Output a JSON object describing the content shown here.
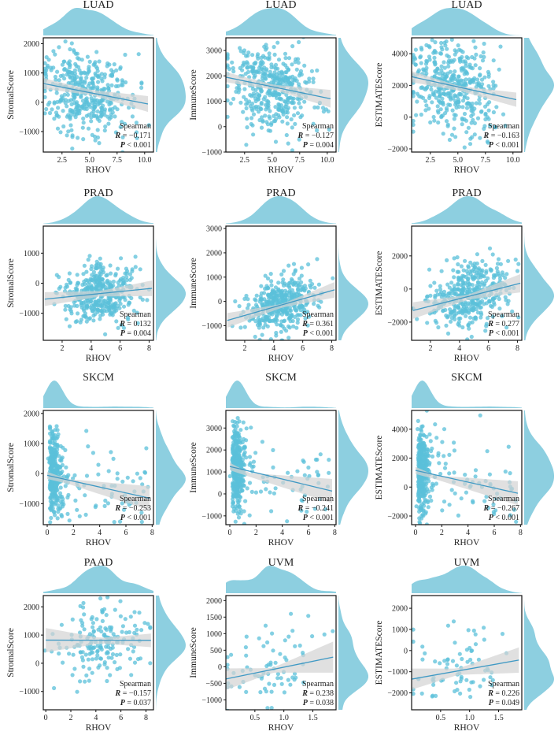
{
  "style": {
    "point_color": "#5bc0d9",
    "line_color": "#3f99c4",
    "band_color": "#d3d3d3",
    "density_color": "#8dcfe0"
  },
  "chart_data": [
    {
      "type": "scatter",
      "title": "LUAD",
      "xlabel": "RHOV",
      "ylabel": "StromalScore",
      "xlim": [
        0.8,
        10.8
      ],
      "ylim": [
        -1700,
        2200
      ],
      "xticks": [
        2.5,
        5.0,
        7.5,
        10.0
      ],
      "xtick_labels": [
        "2.5",
        "5.0",
        "7.5",
        "10.0"
      ],
      "yticks": [
        -1000,
        0,
        1000,
        2000
      ],
      "ytick_labels": [
        "−1000",
        "0",
        "1000",
        "2000"
      ],
      "stat_method": "Spearman",
      "stat_r": "= −0.171",
      "stat_p": "< 0.001",
      "fit": {
        "x": [
          0.8,
          10.3
        ],
        "y": [
          640,
          -60
        ],
        "band": [
          [
            0.8,
            820,
            460
          ],
          [
            5.2,
            420,
            240
          ],
          [
            10.3,
            210,
            -330
          ]
        ]
      },
      "n_points": 420,
      "x_center": 4.5,
      "x_spread": 2.0,
      "y_spread": 720,
      "x_skew": 0.3,
      "seed": 11
    },
    {
      "type": "scatter",
      "title": "LUAD",
      "xlabel": "RHOV",
      "ylabel": "ImmuneScore",
      "xlim": [
        0.8,
        10.8
      ],
      "ylim": [
        -1000,
        3500
      ],
      "xticks": [
        2.5,
        5.0,
        7.5,
        10.0
      ],
      "xtick_labels": [
        "2.5",
        "5.0",
        "7.5",
        "10.0"
      ],
      "yticks": [
        -1000,
        0,
        1000,
        2000,
        3000
      ],
      "ytick_labels": [
        "−1000",
        "0",
        "1000",
        "2000",
        "3000"
      ],
      "stat_method": "Spearman",
      "stat_r": "= −0.127",
      "stat_p": "= 0.004",
      "fit": {
        "x": [
          0.8,
          10.3
        ],
        "y": [
          1950,
          1100
        ],
        "band": [
          [
            0.8,
            2150,
            1750
          ],
          [
            5.2,
            1650,
            1450
          ],
          [
            10.3,
            1450,
            750
          ]
        ]
      },
      "n_points": 420,
      "x_center": 4.5,
      "x_spread": 2.0,
      "y_spread": 850,
      "x_skew": 0.3,
      "seed": 23
    },
    {
      "type": "scatter",
      "title": "LUAD",
      "xlabel": "RHOV",
      "ylabel": "ESTIMATEScore",
      "xlim": [
        0.8,
        10.8
      ],
      "ylim": [
        -2200,
        5000
      ],
      "xticks": [
        2.5,
        5.0,
        7.5,
        10.0
      ],
      "xtick_labels": [
        "2.5",
        "5.0",
        "7.5",
        "10.0"
      ],
      "yticks": [
        -2000,
        0,
        2000,
        4000
      ],
      "ytick_labels": [
        "−2000",
        "0",
        "2000",
        "4000"
      ],
      "stat_method": "Spearman",
      "stat_r": "= −0.163",
      "stat_p": "< 0.001",
      "fit": {
        "x": [
          0.8,
          10.3
        ],
        "y": [
          2550,
          1100
        ],
        "band": [
          [
            0.8,
            2900,
            2200
          ],
          [
            5.2,
            1950,
            1650
          ],
          [
            10.3,
            1550,
            650
          ]
        ]
      },
      "n_points": 420,
      "x_center": 4.5,
      "x_spread": 2.0,
      "y_spread": 1450,
      "x_skew": 0.3,
      "seed": 37
    },
    {
      "type": "scatter",
      "title": "PRAD",
      "xlabel": "RHOV",
      "ylabel": "StromalScore",
      "xlim": [
        0.7,
        8.3
      ],
      "ylim": [
        -1900,
        1900
      ],
      "xticks": [
        2,
        4,
        6,
        8
      ],
      "xtick_labels": [
        "2",
        "4",
        "6",
        "8"
      ],
      "yticks": [
        -1000,
        0,
        1000
      ],
      "ytick_labels": [
        "−1000",
        "0",
        "1000"
      ],
      "stat_method": "Spearman",
      "stat_r": "= 0.132",
      "stat_p": "= 0.004",
      "fit": {
        "x": [
          0.8,
          8.2
        ],
        "y": [
          -530,
          -170
        ],
        "band": [
          [
            0.8,
            -300,
            -760
          ],
          [
            4.6,
            -260,
            -440
          ],
          [
            8.2,
            90,
            -430
          ]
        ]
      },
      "n_points": 420,
      "x_center": 4.6,
      "x_spread": 1.3,
      "y_spread": 480,
      "x_skew": 0,
      "seed": 41
    },
    {
      "type": "scatter",
      "title": "PRAD",
      "xlabel": "RHOV",
      "ylabel": "ImmuneScore",
      "xlim": [
        0.7,
        8.3
      ],
      "ylim": [
        -1600,
        3100
      ],
      "xticks": [
        2,
        4,
        6,
        8
      ],
      "xtick_labels": [
        "2",
        "4",
        "6",
        "8"
      ],
      "yticks": [
        -1000,
        0,
        1000,
        2000,
        3000
      ],
      "ytick_labels": [
        "−1000",
        "0",
        "1000",
        "2000",
        "3000"
      ],
      "stat_method": "Spearman",
      "stat_r": "= 0.361",
      "stat_p": "< 0.001",
      "fit": {
        "x": [
          0.8,
          8.2
        ],
        "y": [
          -780,
          480
        ],
        "band": [
          [
            0.8,
            -480,
            -1080
          ],
          [
            4.6,
            -100,
            -250
          ],
          [
            8.2,
            800,
            160
          ]
        ]
      },
      "n_points": 420,
      "x_center": 4.6,
      "x_spread": 1.3,
      "y_spread": 560,
      "x_skew": 0,
      "seed": 53
    },
    {
      "type": "scatter",
      "title": "PRAD",
      "xlabel": "RHOV",
      "ylabel": "ESTIMATEScore",
      "xlim": [
        0.7,
        8.3
      ],
      "ylim": [
        -3100,
        3800
      ],
      "xticks": [
        2,
        4,
        6,
        8
      ],
      "xtick_labels": [
        "2",
        "4",
        "6",
        "8"
      ],
      "yticks": [
        -2000,
        0,
        2000
      ],
      "ytick_labels": [
        "−2000",
        "0",
        "2000"
      ],
      "stat_method": "Spearman",
      "stat_r": "= 0.277",
      "stat_p": "< 0.001",
      "fit": {
        "x": [
          0.8,
          8.2
        ],
        "y": [
          -1300,
          350
        ],
        "band": [
          [
            0.8,
            -800,
            -1800
          ],
          [
            4.6,
            -350,
            -650
          ],
          [
            8.2,
            900,
            -200
          ]
        ]
      },
      "n_points": 420,
      "x_center": 4.6,
      "x_spread": 1.3,
      "y_spread": 950,
      "x_skew": 0,
      "seed": 67
    },
    {
      "type": "scatter",
      "title": "SKCM",
      "xlabel": "RHOV",
      "ylabel": "StromalScore",
      "xlim": [
        -0.3,
        8.1
      ],
      "ylim": [
        -1700,
        2100
      ],
      "xticks": [
        0,
        2,
        4,
        6,
        8
      ],
      "xtick_labels": [
        "0",
        "2",
        "4",
        "6",
        "8"
      ],
      "yticks": [
        -1000,
        0,
        1000,
        2000
      ],
      "ytick_labels": [
        "−1000",
        "0",
        "1000",
        "2000"
      ],
      "stat_method": "Spearman",
      "stat_r": "= −0.253",
      "stat_p": "< 0.001",
      "fit": {
        "x": [
          0,
          7.8
        ],
        "y": [
          -60,
          -820
        ],
        "band": [
          [
            0,
            60,
            -180
          ],
          [
            1.5,
            -180,
            -330
          ],
          [
            7.8,
            -420,
            -1220
          ]
        ]
      },
      "n_points": 400,
      "x_center": 0.2,
      "x_spread": 0.45,
      "y_spread": 700,
      "x_skew": 1,
      "seed": 71
    },
    {
      "type": "scatter",
      "title": "SKCM",
      "xlabel": "RHOV",
      "ylabel": "ImmuneScore",
      "xlim": [
        -0.3,
        8.1
      ],
      "ylim": [
        -1400,
        3800
      ],
      "xticks": [
        0,
        2,
        4,
        6,
        8
      ],
      "xtick_labels": [
        "0",
        "2",
        "4",
        "6",
        "8"
      ],
      "yticks": [
        -1000,
        0,
        1000,
        2000,
        3000
      ],
      "ytick_labels": [
        "−1000",
        "0",
        "1000",
        "2000",
        "3000"
      ],
      "stat_method": "Spearman",
      "stat_r": "= −0.241",
      "stat_p": "< 0.001",
      "fit": {
        "x": [
          0,
          7.8
        ],
        "y": [
          1250,
          130
        ],
        "band": [
          [
            0,
            1420,
            1080
          ],
          [
            1.5,
            950,
            780
          ],
          [
            7.8,
            680,
            -420
          ]
        ]
      },
      "n_points": 400,
      "x_center": 0.2,
      "x_spread": 0.45,
      "y_spread": 950,
      "x_skew": 1,
      "seed": 83
    },
    {
      "type": "scatter",
      "title": "SKCM",
      "xlabel": "RHOV",
      "ylabel": "ESTIMATEScore",
      "xlim": [
        -0.3,
        8.1
      ],
      "ylim": [
        -2600,
        5300
      ],
      "xticks": [
        0,
        2,
        4,
        6,
        8
      ],
      "xtick_labels": [
        "0",
        "2",
        "4",
        "6",
        "8"
      ],
      "yticks": [
        -2000,
        0,
        2000,
        4000
      ],
      "ytick_labels": [
        "−2000",
        "0",
        "2000",
        "4000"
      ],
      "stat_method": "Spearman",
      "stat_r": "= −0.267",
      "stat_p": "< 0.001",
      "fit": {
        "x": [
          0,
          7.8
        ],
        "y": [
          1150,
          -430
        ],
        "band": [
          [
            0,
            1400,
            900
          ],
          [
            1.5,
            800,
            550
          ],
          [
            7.8,
            400,
            -1260
          ]
        ]
      },
      "n_points": 400,
      "x_center": 0.2,
      "x_spread": 0.45,
      "y_spread": 1550,
      "x_skew": 1,
      "seed": 97
    },
    {
      "type": "scatter",
      "title": "PAAD",
      "xlabel": "RHOV",
      "ylabel": "StromalScore",
      "xlim": [
        -0.2,
        8.6
      ],
      "ylim": [
        -1650,
        2400
      ],
      "xticks": [
        0,
        2,
        4,
        6,
        8
      ],
      "xtick_labels": [
        "0",
        "2",
        "4",
        "6",
        "8"
      ],
      "yticks": [
        -1000,
        0,
        1000,
        2000
      ],
      "ytick_labels": [
        "−1000",
        "0",
        "1000",
        "2000"
      ],
      "stat_method": "Spearman",
      "stat_r": "= −0.157",
      "stat_p": "= 0.037",
      "fit": {
        "x": [
          0,
          8.4
        ],
        "y": [
          820,
          810
        ],
        "band": [
          [
            0,
            1250,
            390
          ],
          [
            4.4,
            900,
            700
          ],
          [
            8.4,
            1050,
            570
          ]
        ]
      },
      "n_points": 180,
      "x_center": 4.4,
      "x_spread": 1.8,
      "y_spread": 700,
      "x_skew": 0,
      "seed": 103
    },
    {
      "type": "scatter",
      "title": "UVM",
      "xlabel": "RHOV",
      "ylabel": "ImmuneScore",
      "xlim": [
        0,
        1.9
      ],
      "ylim": [
        -1300,
        2150
      ],
      "xticks": [
        0.5,
        1.0,
        1.5
      ],
      "xtick_labels": [
        "0.5",
        "1.0",
        "1.5"
      ],
      "yticks": [
        -1000,
        -500,
        0,
        500,
        1000,
        1500,
        2000
      ],
      "ytick_labels": [
        "−1000",
        "−500",
        "0",
        "500",
        "1000",
        "1500",
        "2000"
      ],
      "stat_method": "Spearman",
      "stat_r": "= 0.238",
      "stat_p": "= 0.038",
      "fit": {
        "x": [
          0,
          1.85
        ],
        "y": [
          -370,
          290
        ],
        "band": [
          [
            0,
            -50,
            -700
          ],
          [
            0.8,
            -40,
            -180
          ],
          [
            1.85,
            760,
            -180
          ]
        ]
      },
      "n_points": 75,
      "x_center": 0.75,
      "x_spread": 0.42,
      "y_spread": 650,
      "x_skew": 0,
      "seed": 113
    },
    {
      "type": "scatter",
      "title": "UVM",
      "xlabel": "RHOV",
      "ylabel": "ESTIMATEScore",
      "xlim": [
        0,
        1.9
      ],
      "ylim": [
        -2800,
        2600
      ],
      "xticks": [
        0.5,
        1.0,
        1.5
      ],
      "xtick_labels": [
        "0.5",
        "1.0",
        "1.5"
      ],
      "yticks": [
        -2000,
        -1000,
        0,
        1000,
        2000
      ],
      "ytick_labels": [
        "−2000",
        "−1000",
        "0",
        "1000",
        "2000"
      ],
      "stat_method": "Spearman",
      "stat_r": "= 0.226",
      "stat_p": "= 0.049",
      "fit": {
        "x": [
          0,
          1.85
        ],
        "y": [
          -1350,
          -450
        ],
        "band": [
          [
            0,
            -850,
            -1850
          ],
          [
            0.8,
            -850,
            -1150
          ],
          [
            1.85,
            150,
            -1050
          ]
        ]
      },
      "n_points": 75,
      "x_center": 0.75,
      "x_spread": 0.42,
      "y_spread": 1050,
      "x_skew": 0,
      "seed": 127
    }
  ]
}
